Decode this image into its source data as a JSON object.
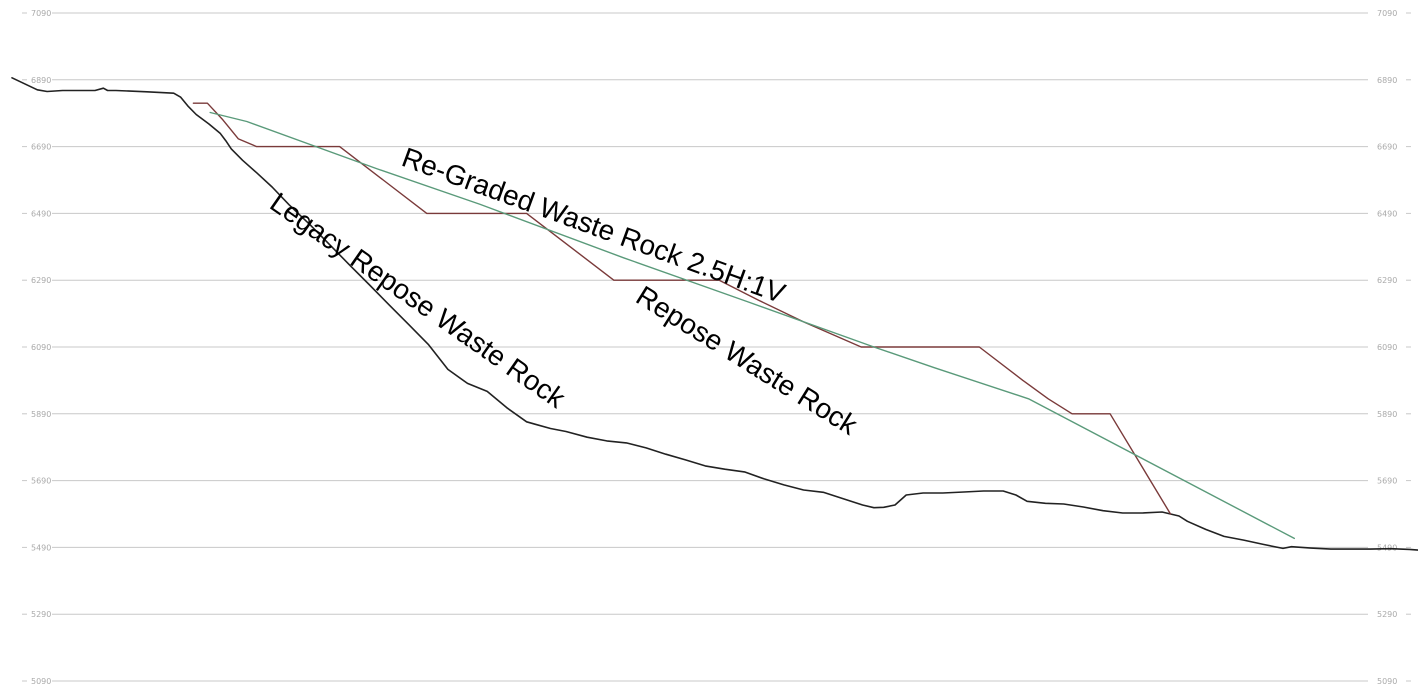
{
  "chart_data": {
    "type": "line",
    "title": "",
    "xlabel": "",
    "ylabel": "",
    "ylim": [
      5090,
      7090
    ],
    "xlim": [
      0,
      1000
    ],
    "y_ticks": [
      7090,
      6890,
      6690,
      6490,
      6290,
      6090,
      5890,
      5690,
      5490,
      5290,
      5090
    ],
    "y_tick_labels": [
      "7090",
      "6890",
      "6690",
      "6490",
      "6290",
      "6090",
      "5890",
      "5690",
      "5490",
      "5290",
      "5090"
    ],
    "grid": true,
    "annotations": [
      {
        "id": "regraded-label",
        "text": "Re-Graded Waste Rock 2.5H:1V"
      },
      {
        "id": "repose-label",
        "text": "Repose Waste Rock"
      },
      {
        "id": "legacy-label",
        "text": "Legacy Repose Waste Rock"
      }
    ],
    "series": [
      {
        "key": "legacy",
        "color": "#222222",
        "x": [
          0,
          18,
          25,
          36,
          59,
          65,
          68,
          74,
          96,
          115,
          120,
          125,
          131,
          140,
          148,
          152,
          156,
          164,
          174,
          185,
          197,
          212,
          226,
          240,
          254,
          268,
          282,
          296,
          310,
          324,
          338,
          352,
          366,
          372,
          383,
          394,
          409,
          423,
          437,
          451,
          465,
          479,
          493,
          507,
          521,
          535,
          549,
          563,
          577,
          591,
          605,
          613,
          620,
          628,
          636,
          648,
          662,
          677,
          691,
          705,
          714,
          722,
          735,
          748,
          762,
          776,
          790,
          804,
          818,
          830,
          836,
          849,
          862,
          876,
          890,
          904,
          910,
          924,
          938,
          952,
          966,
          980,
          994,
          1000
        ],
        "y": [
          6896,
          6860,
          6855,
          6858,
          6858,
          6865,
          6858,
          6858,
          6854,
          6850,
          6838,
          6812,
          6786,
          6758,
          6730,
          6708,
          6683,
          6649,
          6612,
          6569,
          6516,
          6456,
          6396,
          6336,
          6277,
          6217,
          6158,
          6098,
          6023,
          5981,
          5957,
          5908,
          5866,
          5859,
          5846,
          5837,
          5820,
          5809,
          5803,
          5788,
          5769,
          5752,
          5734,
          5724,
          5716,
          5695,
          5677,
          5662,
          5655,
          5636,
          5617,
          5609,
          5610,
          5617,
          5647,
          5653,
          5653,
          5656,
          5659,
          5659,
          5647,
          5628,
          5622,
          5620,
          5611,
          5600,
          5593,
          5593,
          5596,
          5584,
          5568,
          5544,
          5523,
          5512,
          5499,
          5487,
          5492,
          5488,
          5485,
          5485,
          5485,
          5486,
          5484,
          5482
        ]
      },
      {
        "key": "repose",
        "color": "#7a3a3a",
        "x": [
          129,
          139,
          150,
          161,
          174,
          203,
          233,
          264,
          295,
          336,
          366,
          397,
          428,
          462,
          503,
          531,
          563,
          604,
          628,
          651,
          688,
          719,
          737,
          754,
          781,
          824
        ],
        "y": [
          6820,
          6820,
          6770,
          6713,
          6690,
          6690,
          6690,
          6590,
          6490,
          6490,
          6490,
          6390,
          6290,
          6290,
          6290,
          6230,
          6165,
          6090,
          6090,
          6090,
          6090,
          5990,
          5935,
          5890,
          5890,
          5590
        ]
      },
      {
        "key": "regraded",
        "color": "#5a9a7a",
        "x": [
          141,
          167,
          260,
          333,
          435,
          523,
          613,
          656,
          723,
          912
        ],
        "y": [
          6792,
          6765,
          6623,
          6517,
          6357,
          6226,
          6090,
          6028,
          5935,
          5517
        ]
      }
    ]
  }
}
